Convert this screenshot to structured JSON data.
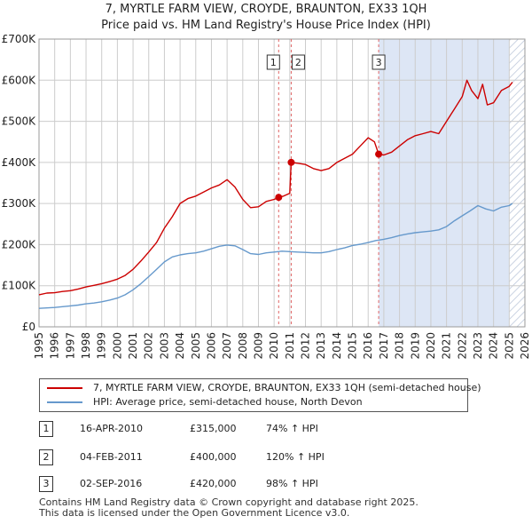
{
  "title_line1": "7, MYRTLE FARM VIEW, CROYDE, BRAUNTON, EX33 1QH",
  "title_line2": "Price paid vs. HM Land Registry's House Price Index (HPI)",
  "colors": {
    "price": "#cc0000",
    "hpi": "#6699cc",
    "shade": "#dde6f5",
    "grid": "#cccccc",
    "event": "#e06666"
  },
  "legend": {
    "price_label": "7, MYRTLE FARM VIEW, CROYDE, BRAUNTON, EX33 1QH (semi-detached house)",
    "hpi_label": "HPI: Average price, semi-detached house, North Devon"
  },
  "transactions": [
    {
      "num": "1",
      "date": "16-APR-2010",
      "price": "£315,000",
      "pct": "74% ↑ HPI"
    },
    {
      "num": "2",
      "date": "04-FEB-2011",
      "price": "£400,000",
      "pct": "120% ↑ HPI"
    },
    {
      "num": "3",
      "date": "02-SEP-2016",
      "price": "£420,000",
      "pct": "98% ↑ HPI"
    }
  ],
  "footer_line1": "Contains HM Land Registry data © Crown copyright and database right 2025.",
  "footer_line2": "This data is licensed under the Open Government Licence v3.0.",
  "chart_data": {
    "type": "line",
    "xlim": [
      1995,
      2026
    ],
    "ylim": [
      0,
      700000
    ],
    "y_ticks": [
      0,
      100000,
      200000,
      300000,
      400000,
      500000,
      600000,
      700000
    ],
    "y_tick_labels": [
      "£0",
      "£100K",
      "£200K",
      "£300K",
      "£400K",
      "£500K",
      "£600K",
      "£700K"
    ],
    "x_ticks": [
      "1995",
      "1996",
      "1997",
      "1998",
      "1999",
      "2000",
      "2001",
      "2002",
      "2003",
      "2004",
      "2005",
      "2006",
      "2007",
      "2008",
      "2009",
      "2010",
      "2011",
      "2012",
      "2013",
      "2014",
      "2015",
      "2016",
      "2017",
      "2018",
      "2019",
      "2020",
      "2021",
      "2022",
      "2023",
      "2024",
      "2025",
      "2026"
    ],
    "hpi_shade_from": 2016.67,
    "future_hatch_from": 2025.0,
    "events": [
      {
        "label": "1",
        "x": 2010.29,
        "y": 315000
      },
      {
        "label": "2",
        "x": 2011.09,
        "y": 400000
      },
      {
        "label": "3",
        "x": 2016.67,
        "y": 420000
      }
    ],
    "series": [
      {
        "name": "7, MYRTLE FARM VIEW, CROYDE, BRAUNTON, EX33 1QH (semi-detached house)",
        "color": "#cc0000",
        "x": [
          1995.0,
          1995.5,
          1996.0,
          1996.5,
          1997.0,
          1997.5,
          1998.0,
          1998.5,
          1999.0,
          1999.5,
          2000.0,
          2000.5,
          2001.0,
          2001.5,
          2002.0,
          2002.5,
          2003.0,
          2003.5,
          2004.0,
          2004.5,
          2005.0,
          2005.5,
          2006.0,
          2006.5,
          2007.0,
          2007.5,
          2008.0,
          2008.5,
          2009.0,
          2009.5,
          2010.0,
          2010.29,
          2010.6,
          2011.0,
          2011.09,
          2011.5,
          2012.0,
          2012.5,
          2013.0,
          2013.5,
          2014.0,
          2014.5,
          2015.0,
          2015.5,
          2016.0,
          2016.4,
          2016.67,
          2017.0,
          2017.5,
          2018.0,
          2018.5,
          2019.0,
          2019.5,
          2020.0,
          2020.5,
          2021.0,
          2021.5,
          2022.0,
          2022.3,
          2022.6,
          2023.0,
          2023.3,
          2023.6,
          2024.0,
          2024.5,
          2025.0,
          2025.2
        ],
        "values": [
          78000,
          82000,
          83000,
          86000,
          88000,
          92000,
          97000,
          101000,
          105000,
          110000,
          116000,
          125000,
          140000,
          160000,
          182000,
          205000,
          240000,
          268000,
          300000,
          312000,
          318000,
          328000,
          338000,
          345000,
          358000,
          340000,
          310000,
          290000,
          292000,
          305000,
          310000,
          315000,
          318000,
          325000,
          400000,
          398000,
          395000,
          385000,
          380000,
          385000,
          400000,
          410000,
          420000,
          440000,
          460000,
          450000,
          420000,
          418000,
          425000,
          440000,
          455000,
          465000,
          470000,
          475000,
          470000,
          500000,
          530000,
          560000,
          600000,
          575000,
          555000,
          590000,
          540000,
          545000,
          575000,
          585000,
          595000
        ]
      },
      {
        "name": "HPI: Average price, semi-detached house, North Devon",
        "color": "#6699cc",
        "x": [
          1995.0,
          1995.5,
          1996.0,
          1996.5,
          1997.0,
          1997.5,
          1998.0,
          1998.5,
          1999.0,
          1999.5,
          2000.0,
          2000.5,
          2001.0,
          2001.5,
          2002.0,
          2002.5,
          2003.0,
          2003.5,
          2004.0,
          2004.5,
          2005.0,
          2005.5,
          2006.0,
          2006.5,
          2007.0,
          2007.5,
          2008.0,
          2008.5,
          2009.0,
          2009.5,
          2010.0,
          2010.5,
          2011.0,
          2011.5,
          2012.0,
          2012.5,
          2013.0,
          2013.5,
          2014.0,
          2014.5,
          2015.0,
          2015.5,
          2016.0,
          2016.5,
          2017.0,
          2017.5,
          2018.0,
          2018.5,
          2019.0,
          2019.5,
          2020.0,
          2020.5,
          2021.0,
          2021.5,
          2022.0,
          2022.5,
          2023.0,
          2023.5,
          2024.0,
          2024.5,
          2025.0,
          2025.2
        ],
        "values": [
          45000,
          46000,
          47000,
          49000,
          51000,
          53000,
          56000,
          58000,
          61000,
          65000,
          70000,
          78000,
          90000,
          105000,
          122000,
          140000,
          158000,
          170000,
          175000,
          178000,
          180000,
          184000,
          190000,
          196000,
          199000,
          197000,
          188000,
          178000,
          176000,
          180000,
          182000,
          184000,
          183000,
          182000,
          181000,
          180000,
          180000,
          183000,
          188000,
          192000,
          198000,
          201000,
          205000,
          210000,
          213000,
          217000,
          222000,
          226000,
          229000,
          231000,
          233000,
          236000,
          244000,
          258000,
          270000,
          282000,
          295000,
          287000,
          282000,
          291000,
          295000,
          300000
        ]
      }
    ]
  }
}
